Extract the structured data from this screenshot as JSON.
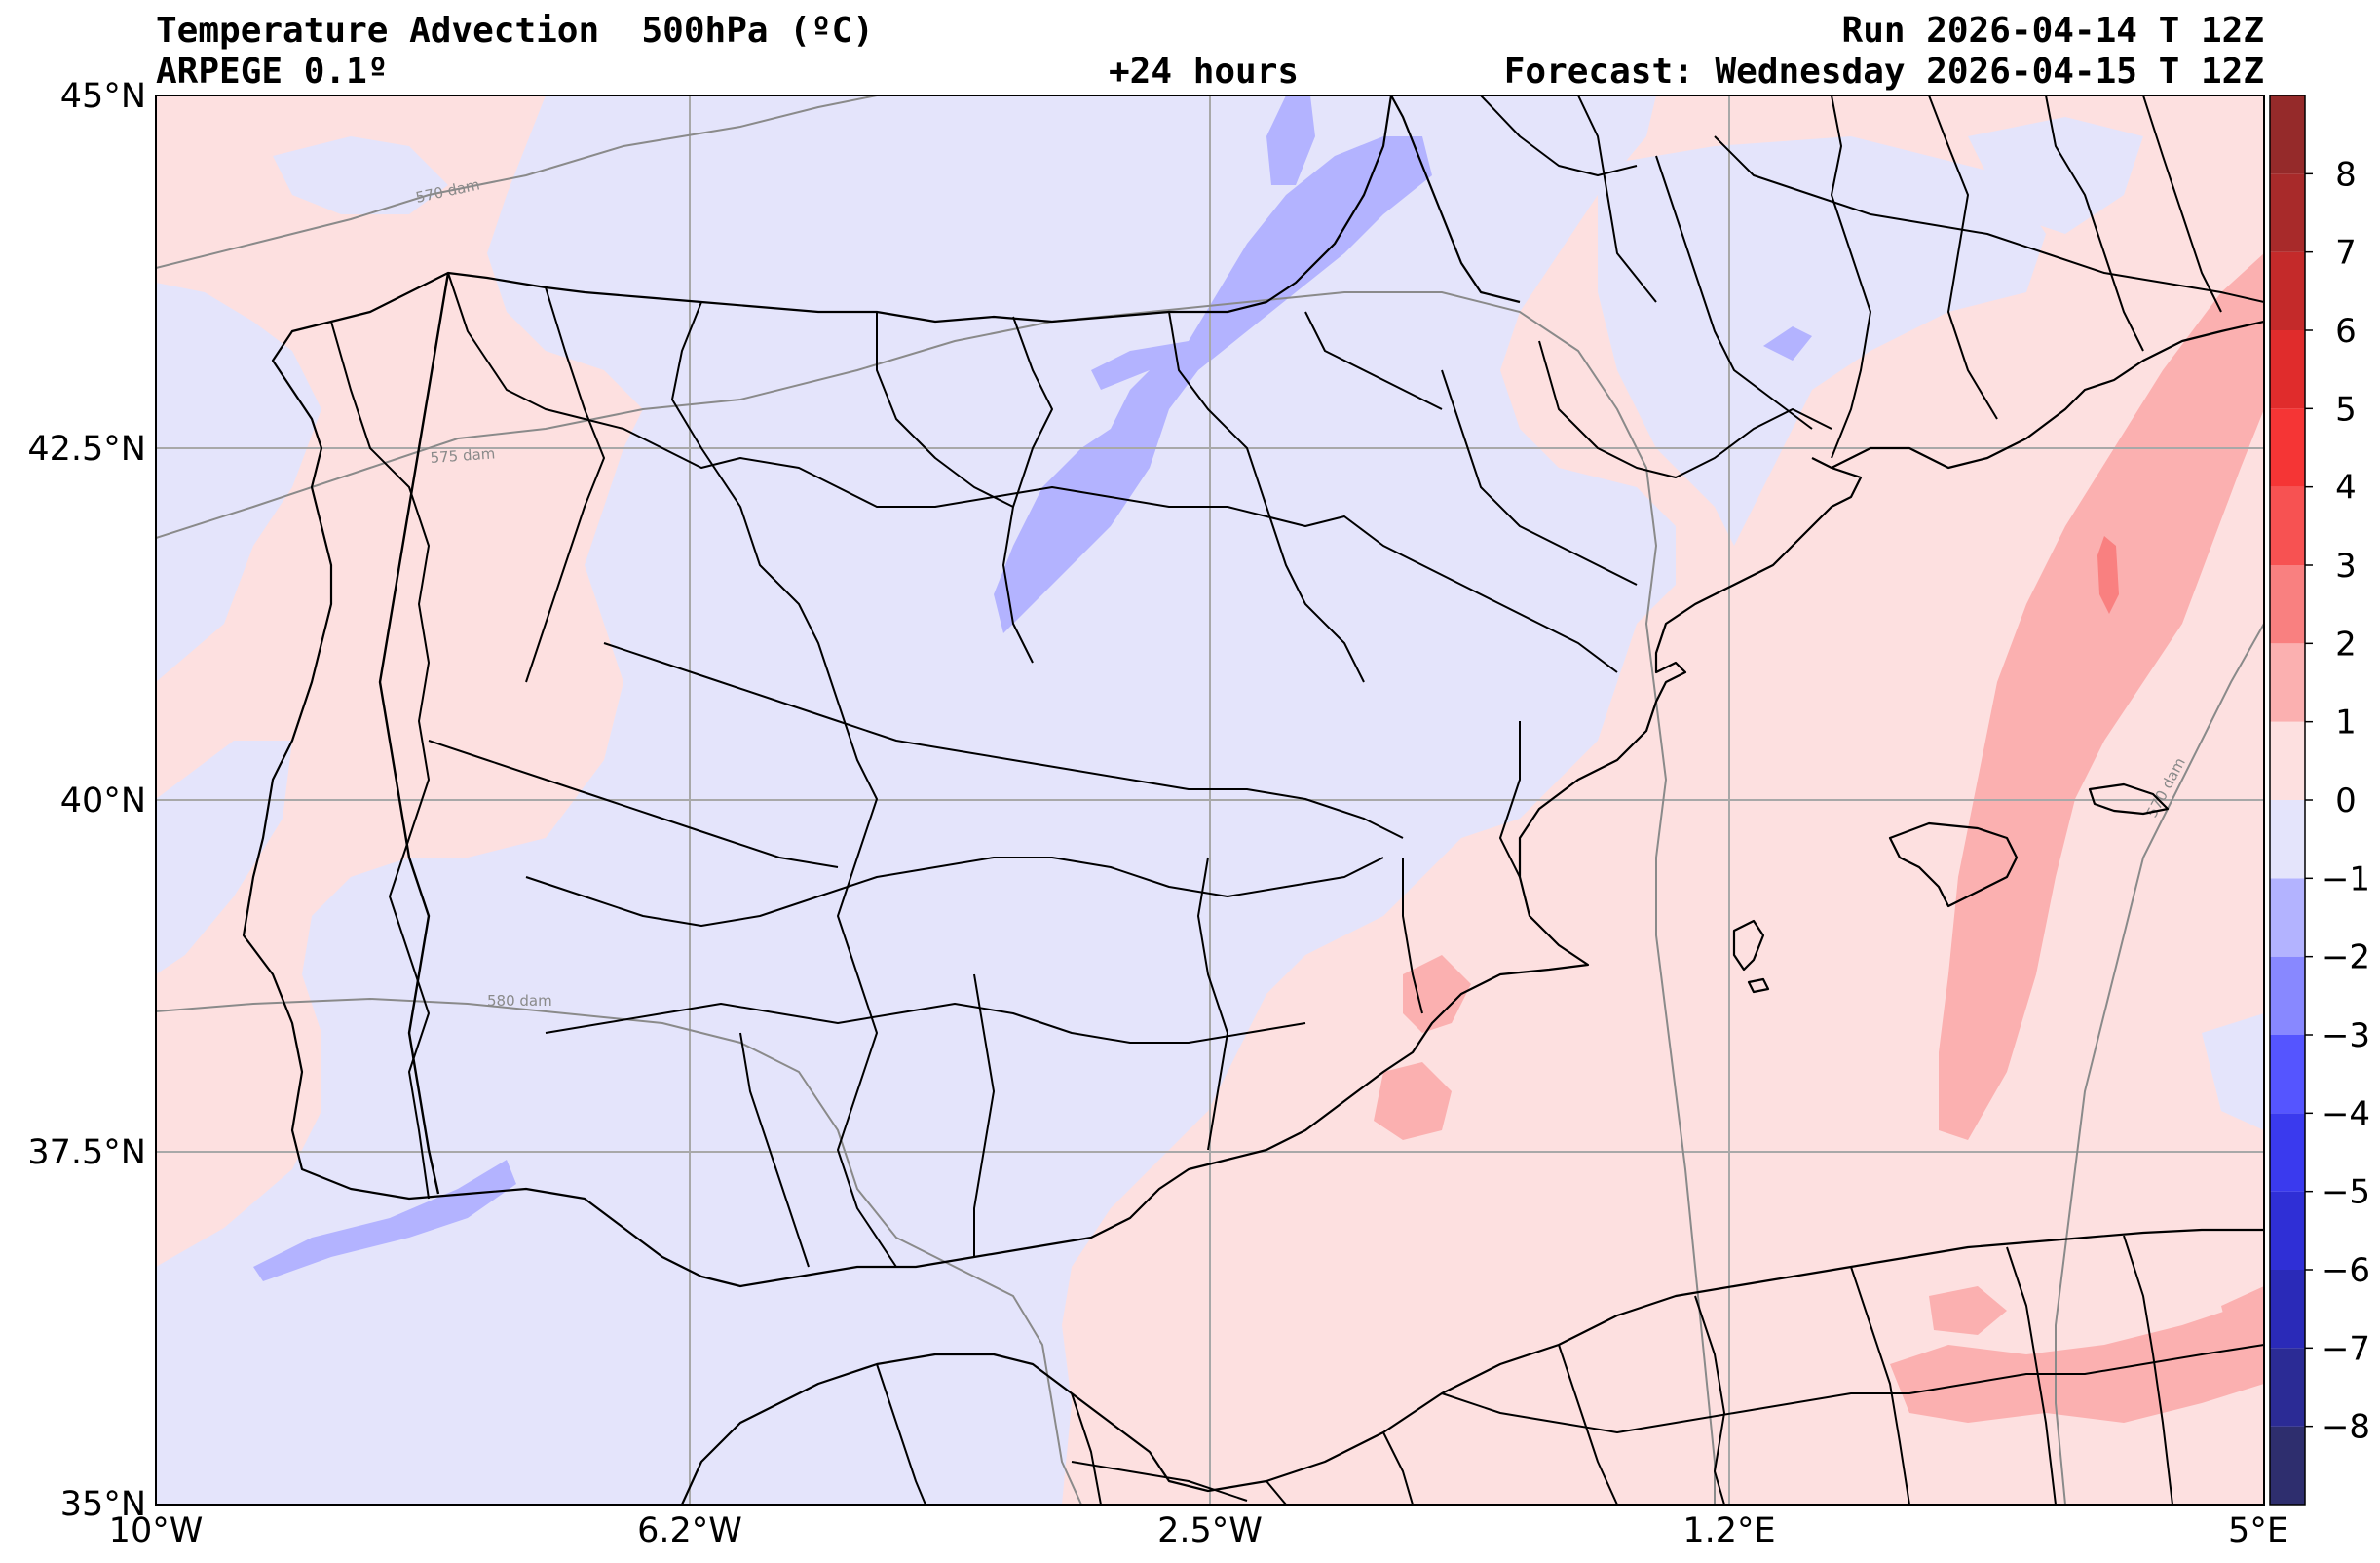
{
  "header": {
    "title": "Temperature Advection  500hPa (ºC)",
    "model": "ARPEGE 0.1º",
    "lead": "+24 hours",
    "run": "Run 2026-04-14 T 12Z",
    "forecast": "Forecast: Wednesday 2026-04-15 T 12Z"
  },
  "map": {
    "projection": "PlateCarree",
    "lon_range": [
      -10,
      5
    ],
    "lat_range": [
      35,
      45
    ],
    "grid": true,
    "lat_labels": [
      "45°N",
      "42.5°N",
      "40°N",
      "37.5°N",
      "35°N"
    ],
    "lon_labels": [
      "10°W",
      "6.2°W",
      "2.5°W",
      "1.2°E",
      "5°E"
    ],
    "isohypse_labels": [
      "570 dam",
      "575 dam",
      "580 dam",
      "570 dam"
    ]
  },
  "colorbar": {
    "levels": [
      -9,
      -8,
      -7,
      -6,
      -5,
      -4,
      -3,
      -2,
      -1,
      0,
      1,
      2,
      3,
      4,
      5,
      6,
      7,
      8,
      9
    ],
    "tick_labels": [
      "8",
      "7",
      "6",
      "5",
      "4",
      "3",
      "2",
      "1",
      "0",
      "−1",
      "−2",
      "−3",
      "−4",
      "−5",
      "−6",
      "−7",
      "−8"
    ],
    "colors": [
      "#2e2e6e",
      "#2b2b95",
      "#2a2ab8",
      "#2f2fd6",
      "#3a3aee",
      "#5555ff",
      "#8888ff",
      "#b3b3ff",
      "#e4e4fb",
      "#fde0e0",
      "#fbb0b0",
      "#f98080",
      "#f75252",
      "#f53535",
      "#e02c2c",
      "#c42a2a",
      "#a82a2a",
      "#952a2a"
    ]
  },
  "colors": {
    "neutral_warm": "#fde0e0",
    "neutral_cold": "#e4e4fb",
    "warm_1": "#fbb0b0",
    "warm_2": "#f98080",
    "cold_1": "#b3b3ff",
    "border": "#000000",
    "isohypse": "#8a8a8a",
    "grid": "#a8a8a8"
  }
}
